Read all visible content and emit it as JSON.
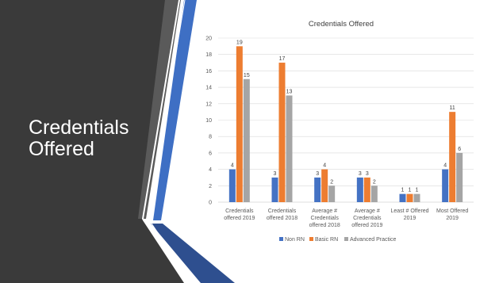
{
  "slide": {
    "title": "Credentials Offered"
  },
  "colors": {
    "panel": "#3a3a3a",
    "accent_blue": "#3e6fc4",
    "accent_dark": "#2e4f8f",
    "grid": "#d9d9d9"
  },
  "chart_data": {
    "type": "bar",
    "title": "Credentials Offered",
    "categories": [
      [
        "Credentials",
        "offered 2019"
      ],
      [
        "Credentials",
        "offered 2018"
      ],
      [
        "Average #",
        "Credentials",
        "offered 2018"
      ],
      [
        "Average #",
        "Credentials",
        "offered 2019"
      ],
      [
        "Least # Offered",
        "2019"
      ],
      [
        "Most Offered",
        "2019"
      ]
    ],
    "series": [
      {
        "name": "Non RN",
        "color": "#4472c4",
        "values": [
          4,
          3,
          3,
          3,
          1,
          4
        ]
      },
      {
        "name": "Basic RN",
        "color": "#ed7d31",
        "values": [
          19,
          17,
          4,
          3,
          1,
          11
        ]
      },
      {
        "name": "Advanced Practice",
        "color": "#a5a5a5",
        "values": [
          15,
          13,
          2,
          2,
          1,
          6
        ]
      }
    ],
    "ylim": [
      0,
      20
    ],
    "yticks": [
      0,
      2,
      4,
      6,
      8,
      10,
      12,
      14,
      16,
      18,
      20
    ],
    "grid": true,
    "legend": "bottom"
  }
}
